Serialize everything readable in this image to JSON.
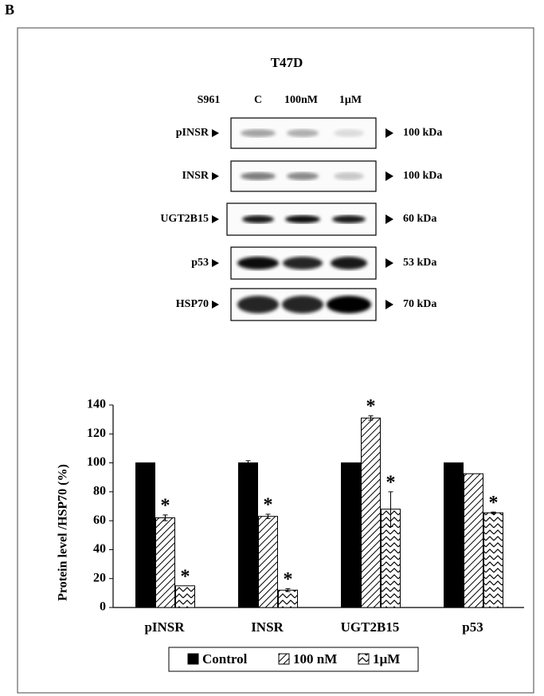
{
  "panel_label": "B",
  "blot": {
    "title": "T47D",
    "treatment": "S961",
    "lanes": [
      "C",
      "100nM",
      "1μM"
    ],
    "rows": [
      {
        "label": "pINSR",
        "size": "100 kDa"
      },
      {
        "label": "INSR",
        "size": "100 kDa"
      },
      {
        "label": "UGT2B15",
        "size": "60 kDa"
      },
      {
        "label": "p53",
        "size": "53 kDa"
      },
      {
        "label": "HSP70",
        "size": "70 kDa"
      }
    ]
  },
  "chart_data": {
    "type": "bar",
    "ylabel": "Protein level /HSP70 (%)",
    "categories": [
      "pINSR",
      "INSR",
      "UGT2B15",
      "p53"
    ],
    "series": [
      {
        "name": "Control",
        "color": "#000000",
        "pattern": "solid",
        "values": [
          100,
          100,
          100,
          100
        ],
        "errors": [
          0,
          1.5,
          0,
          0
        ],
        "significance": [
          null,
          null,
          null,
          null
        ]
      },
      {
        "name": "100 nM",
        "color": "#000000",
        "pattern": "hatch",
        "values": [
          62,
          63,
          131,
          92.5
        ],
        "errors": [
          2,
          1.5,
          1.5,
          0
        ],
        "significance": [
          "*",
          "*",
          "*",
          null
        ]
      },
      {
        "name": "1µM",
        "color": "#000000",
        "pattern": "zigzag",
        "values": [
          15,
          12,
          68,
          65.5
        ],
        "errors": [
          0,
          1,
          12,
          0.5
        ],
        "significance": [
          "*",
          "*",
          "*",
          "*"
        ]
      }
    ],
    "ylim": [
      0,
      140
    ],
    "yticks": [
      0,
      20,
      40,
      60,
      80,
      100,
      120,
      140
    ]
  }
}
